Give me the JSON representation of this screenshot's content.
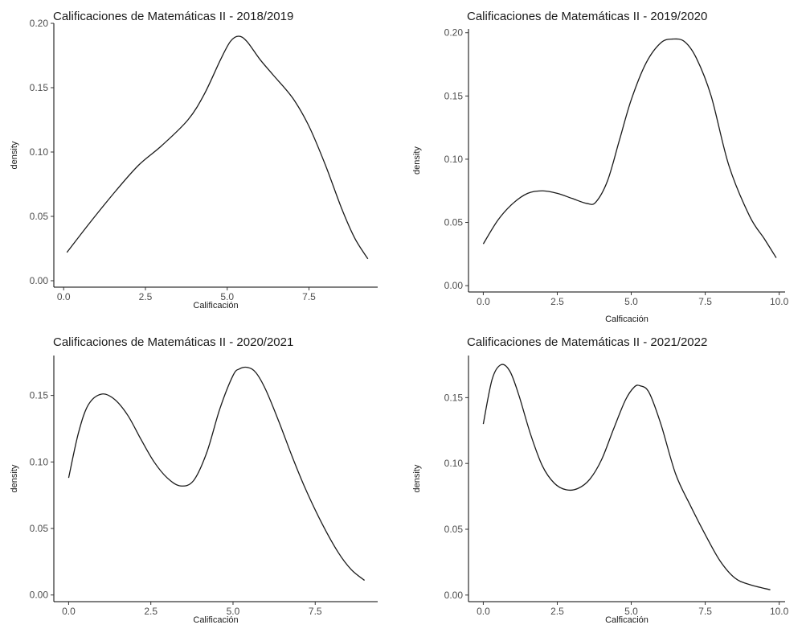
{
  "chart_data": [
    {
      "type": "line",
      "title": "Calificaciones de Matemáticas II  - 2018/2019",
      "xlabel": "Calificación",
      "ylabel": "density",
      "xlim": [
        -0.3,
        9.6
      ],
      "ylim": [
        -0.005,
        0.2
      ],
      "x_ticks": [
        0,
        2.5,
        5,
        7.5
      ],
      "x_tick_labels": [
        "0.0",
        "2.5",
        "5.0",
        "7.5"
      ],
      "y_ticks": [
        0,
        0.05,
        0.1,
        0.15,
        0.2
      ],
      "y_tick_labels": [
        "0.00",
        "0.05",
        "0.10",
        "0.15",
        "0.20"
      ],
      "grid": false,
      "series": [
        {
          "x": [
            0.1,
            0.8,
            1.6,
            2.3,
            3.0,
            3.8,
            4.3,
            4.8,
            5.1,
            5.35,
            5.6,
            6.0,
            6.4,
            7.0,
            7.5,
            8.0,
            8.5,
            8.9,
            9.3
          ],
          "values": [
            0.022,
            0.045,
            0.07,
            0.09,
            0.105,
            0.125,
            0.145,
            0.172,
            0.186,
            0.19,
            0.186,
            0.172,
            0.16,
            0.142,
            0.12,
            0.09,
            0.056,
            0.033,
            0.017
          ]
        }
      ]
    },
    {
      "type": "line",
      "title": "Calificaciones de Matemáticas II  - 2019/2020",
      "xlabel": "Calficación",
      "ylabel": "density",
      "xlim": [
        -0.5,
        10.2
      ],
      "ylim": [
        -0.005,
        0.203
      ],
      "x_ticks": [
        0,
        2.5,
        5,
        7.5,
        10
      ],
      "x_tick_labels": [
        "0.0",
        "2.5",
        "5.0",
        "7.5",
        "10.0"
      ],
      "y_ticks": [
        0,
        0.05,
        0.1,
        0.15,
        0.2
      ],
      "y_tick_labels": [
        "0.00",
        "0.05",
        "0.10",
        "0.15",
        "0.20"
      ],
      "grid": false,
      "series": [
        {
          "x": [
            0.0,
            0.5,
            1.0,
            1.5,
            2.0,
            2.5,
            3.0,
            3.5,
            3.8,
            4.2,
            4.6,
            5.0,
            5.5,
            6.0,
            6.4,
            6.8,
            7.2,
            7.7,
            8.3,
            9.0,
            9.5,
            9.9
          ],
          "values": [
            0.033,
            0.052,
            0.065,
            0.073,
            0.075,
            0.073,
            0.069,
            0.065,
            0.066,
            0.083,
            0.115,
            0.147,
            0.176,
            0.192,
            0.195,
            0.193,
            0.18,
            0.15,
            0.095,
            0.055,
            0.037,
            0.022
          ]
        }
      ]
    },
    {
      "type": "line",
      "title": "Calificaciones de Matemáticas II  - 2020/2021",
      "xlabel": "Calificación",
      "ylabel": "density",
      "xlim": [
        -0.45,
        9.4
      ],
      "ylim": [
        -0.005,
        0.18
      ],
      "x_ticks": [
        0,
        2.5,
        5,
        7.5
      ],
      "x_tick_labels": [
        "0.0",
        "2.5",
        "5.0",
        "7.5"
      ],
      "y_ticks": [
        0,
        0.05,
        0.1,
        0.15
      ],
      "y_tick_labels": [
        "0.00",
        "0.05",
        "0.10",
        "0.15"
      ],
      "grid": false,
      "series": [
        {
          "x": [
            0.0,
            0.3,
            0.6,
            1.0,
            1.4,
            1.8,
            2.2,
            2.6,
            3.0,
            3.4,
            3.8,
            4.2,
            4.6,
            5.0,
            5.2,
            5.45,
            5.7,
            6.0,
            6.4,
            6.8,
            7.2,
            7.7,
            8.2,
            8.6,
            9.0
          ],
          "values": [
            0.088,
            0.122,
            0.143,
            0.151,
            0.147,
            0.135,
            0.117,
            0.1,
            0.088,
            0.082,
            0.086,
            0.107,
            0.14,
            0.165,
            0.17,
            0.171,
            0.167,
            0.154,
            0.13,
            0.104,
            0.08,
            0.054,
            0.032,
            0.019,
            0.011
          ]
        }
      ]
    },
    {
      "type": "line",
      "title": "Calificaciones de Matemáticas II - 2021/2022",
      "xlabel": "Calficación",
      "ylabel": "density",
      "xlim": [
        -0.5,
        10.2
      ],
      "ylim": [
        -0.005,
        0.182
      ],
      "x_ticks": [
        0,
        2.5,
        5,
        7.5,
        10
      ],
      "x_tick_labels": [
        "0.0",
        "2.5",
        "5.0",
        "7.5",
        "10.0"
      ],
      "y_ticks": [
        0,
        0.05,
        0.1,
        0.15
      ],
      "y_tick_labels": [
        "0.00",
        "0.05",
        "0.10",
        "0.15"
      ],
      "grid": false,
      "series": [
        {
          "x": [
            0.0,
            0.3,
            0.6,
            0.9,
            1.2,
            1.6,
            2.0,
            2.4,
            2.8,
            3.2,
            3.6,
            4.0,
            4.4,
            4.8,
            5.1,
            5.3,
            5.6,
            6.0,
            6.5,
            7.0,
            7.5,
            8.0,
            8.5,
            9.0,
            9.7
          ],
          "values": [
            0.13,
            0.164,
            0.175,
            0.17,
            0.152,
            0.122,
            0.098,
            0.085,
            0.08,
            0.081,
            0.088,
            0.103,
            0.126,
            0.148,
            0.158,
            0.159,
            0.154,
            0.13,
            0.092,
            0.068,
            0.046,
            0.026,
            0.013,
            0.008,
            0.004
          ]
        }
      ]
    }
  ]
}
